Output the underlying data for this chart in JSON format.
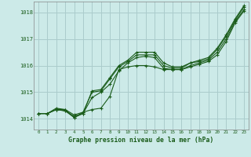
{
  "background_color": "#cceae8",
  "grid_color": "#aacccc",
  "line_color": "#1a5c1a",
  "title": "Graphe pression niveau de la mer (hPa)",
  "x_ticks": [
    0,
    1,
    2,
    3,
    4,
    5,
    6,
    7,
    8,
    9,
    10,
    11,
    12,
    13,
    14,
    15,
    16,
    17,
    18,
    19,
    20,
    21,
    22,
    23
  ],
  "ylim": [
    1013.6,
    1018.4
  ],
  "y_ticks": [
    1014,
    1015,
    1016,
    1017,
    1018
  ],
  "series": [
    [
      1014.2,
      1014.2,
      1014.35,
      1014.35,
      1014.15,
      1014.25,
      1014.35,
      1014.4,
      1014.85,
      1015.85,
      1015.95,
      1016.0,
      1016.0,
      1015.95,
      1015.85,
      1015.85,
      1015.85,
      1015.95,
      1016.05,
      1016.15,
      1016.4,
      1016.9,
      1017.6,
      1018.05
    ],
    [
      1014.2,
      1014.2,
      1014.35,
      1014.3,
      1014.1,
      1014.2,
      1014.8,
      1015.0,
      1015.3,
      1015.8,
      1016.1,
      1016.3,
      1016.35,
      1016.3,
      1015.9,
      1015.85,
      1015.85,
      1016.0,
      1016.1,
      1016.2,
      1016.5,
      1017.0,
      1017.65,
      1018.1
    ],
    [
      1014.2,
      1014.2,
      1014.4,
      1014.35,
      1014.05,
      1014.25,
      1015.0,
      1015.05,
      1015.5,
      1015.95,
      1016.15,
      1016.4,
      1016.4,
      1016.4,
      1016.0,
      1015.9,
      1015.9,
      1016.1,
      1016.15,
      1016.25,
      1016.6,
      1017.1,
      1017.7,
      1018.2
    ],
    [
      1014.2,
      1014.2,
      1014.35,
      1014.3,
      1014.05,
      1014.2,
      1015.05,
      1015.1,
      1015.55,
      1016.0,
      1016.2,
      1016.5,
      1016.5,
      1016.5,
      1016.1,
      1015.95,
      1015.95,
      1016.1,
      1016.2,
      1016.3,
      1016.65,
      1017.15,
      1017.75,
      1018.25
    ]
  ]
}
